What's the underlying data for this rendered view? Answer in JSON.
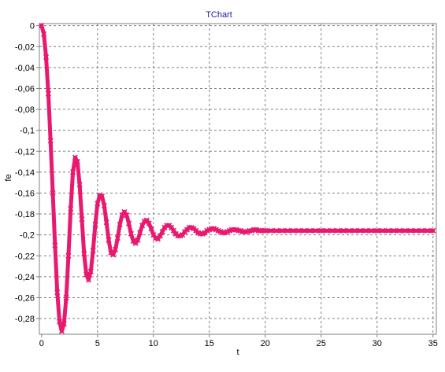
{
  "chart_data": {
    "type": "scatter",
    "title": "TChart",
    "xlabel": "t",
    "ylabel": "fe",
    "xlim": [
      -0.2,
      35.3
    ],
    "ylim": [
      -0.295,
      0.002
    ],
    "x_ticks": [
      0,
      5,
      10,
      15,
      20,
      25,
      30,
      35
    ],
    "x_tick_labels": [
      "0",
      "5",
      "10",
      "15",
      "20",
      "25",
      "30",
      "35"
    ],
    "y_ticks": [
      0,
      -0.02,
      -0.04,
      -0.06,
      -0.08,
      -0.1,
      -0.12,
      -0.14,
      -0.16,
      -0.18,
      -0.2,
      -0.22,
      -0.24,
      -0.26,
      -0.28
    ],
    "y_tick_labels": [
      "0",
      "-0,02",
      "-0,04",
      "-0,06",
      "-0,08",
      "-0,1",
      "-0,12",
      "-0,14",
      "-0,16",
      "-0,18",
      "-0,2",
      "-0,22",
      "-0,24",
      "-0,26",
      "-0,28"
    ],
    "grid": true,
    "legend": "none",
    "series": [
      {
        "color": "#e8196e",
        "marker": "cross",
        "x": [
          0,
          0.2,
          0.4,
          0.6,
          0.8,
          1.0,
          1.2,
          1.4,
          1.6,
          1.8,
          2.0,
          2.2,
          2.4,
          2.6,
          2.8,
          3.0,
          3.2,
          3.4,
          3.6,
          3.8,
          4.0,
          4.2,
          4.4,
          4.6,
          4.8,
          5.0,
          5.2,
          5.4,
          5.6,
          5.8,
          6.0,
          6.2,
          6.4,
          6.6,
          6.8,
          7.0,
          7.2,
          7.4,
          7.6,
          7.8,
          8.0,
          8.2,
          8.4,
          8.6,
          8.8,
          9.0,
          9.2,
          9.4,
          9.6,
          9.8,
          10.0,
          10.2,
          10.4,
          10.6,
          10.8,
          11.0,
          11.2,
          11.4,
          11.6,
          11.8,
          12.0,
          12.2,
          12.4,
          12.6,
          12.8,
          13.0,
          13.2,
          13.4,
          13.6,
          13.8,
          14.0,
          14.2,
          14.4,
          14.6,
          14.8,
          15.0,
          15.2,
          15.4,
          15.6,
          15.8,
          16.0,
          16.2,
          16.4,
          16.6,
          16.8,
          17.0,
          17.2,
          17.4,
          17.6,
          17.8,
          18.0,
          18.2,
          18.4,
          18.6,
          18.8,
          19.0,
          19.2,
          19.4,
          19.6,
          19.8,
          20.0,
          20.5,
          21.0,
          21.5,
          22.0,
          22.5,
          23.0,
          23.5,
          24.0,
          24.5,
          25.0,
          25.5,
          26.0,
          26.5,
          27.0,
          27.5,
          28.0,
          28.5,
          29.0,
          29.5,
          30.0,
          30.5,
          31.0,
          31.5,
          32.0,
          32.5,
          33.0,
          33.5,
          34.0,
          34.5,
          35.0
        ],
        "y": [
          0,
          -0.008,
          -0.03,
          -0.065,
          -0.11,
          -0.16,
          -0.21,
          -0.255,
          -0.283,
          -0.292,
          -0.285,
          -0.26,
          -0.22,
          -0.175,
          -0.14,
          -0.126,
          -0.13,
          -0.152,
          -0.185,
          -0.218,
          -0.238,
          -0.243,
          -0.235,
          -0.215,
          -0.19,
          -0.17,
          -0.162,
          -0.163,
          -0.172,
          -0.188,
          -0.205,
          -0.217,
          -0.219,
          -0.214,
          -0.203,
          -0.19,
          -0.181,
          -0.178,
          -0.181,
          -0.189,
          -0.199,
          -0.206,
          -0.208,
          -0.205,
          -0.198,
          -0.191,
          -0.187,
          -0.186,
          -0.189,
          -0.194,
          -0.2,
          -0.203,
          -0.204,
          -0.201,
          -0.197,
          -0.193,
          -0.191,
          -0.191,
          -0.193,
          -0.196,
          -0.199,
          -0.201,
          -0.201,
          -0.2,
          -0.197,
          -0.195,
          -0.193,
          -0.193,
          -0.194,
          -0.196,
          -0.198,
          -0.199,
          -0.199,
          -0.198,
          -0.196,
          -0.195,
          -0.194,
          -0.194,
          -0.195,
          -0.196,
          -0.197,
          -0.198,
          -0.198,
          -0.197,
          -0.196,
          -0.195,
          -0.195,
          -0.195,
          -0.196,
          -0.196,
          -0.197,
          -0.197,
          -0.197,
          -0.196,
          -0.196,
          -0.195,
          -0.195,
          -0.196,
          -0.196,
          -0.196,
          -0.196,
          -0.196,
          -0.196,
          -0.196,
          -0.196,
          -0.196,
          -0.196,
          -0.196,
          -0.196,
          -0.196,
          -0.196,
          -0.196,
          -0.196,
          -0.196,
          -0.196,
          -0.196,
          -0.196,
          -0.196,
          -0.196,
          -0.196,
          -0.196,
          -0.196,
          -0.196,
          -0.196,
          -0.196,
          -0.196,
          -0.196,
          -0.196,
          -0.196,
          -0.196,
          -0.196
        ]
      }
    ]
  }
}
